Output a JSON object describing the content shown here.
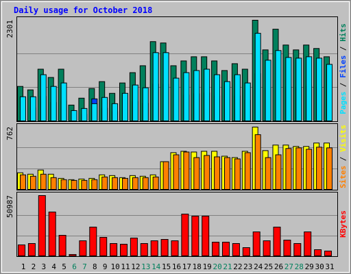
{
  "chart_data": [
    {
      "type": "bar",
      "title": "Daily usage for October 2018",
      "ylim": [
        0,
        2301
      ],
      "yticks": [
        2301
      ],
      "legend_separator": " / ",
      "series": [
        {
          "name": "Hits",
          "color": "#00805c",
          "values": [
            788,
            709,
            1182,
            993,
            1182,
            362,
            520,
            741,
            898,
            630,
            867,
            1103,
            1261,
            1812,
            1781,
            1261,
            1371,
            1466,
            1466,
            1371,
            1151,
            1308,
            1182,
            2301,
            1623,
            2096,
            1734,
            1623,
            1734,
            1655,
            1466
          ]
        },
        {
          "name": "Files",
          "color": "#0040ff",
          "values": [
            300,
            300,
            560,
            420,
            460,
            130,
            150,
            504,
            290,
            210,
            340,
            440,
            400,
            840,
            840,
            520,
            590,
            620,
            640,
            570,
            480,
            570,
            470,
            1080,
            750,
            870,
            780,
            770,
            790,
            770,
            700
          ]
        },
        {
          "name": "Pages",
          "color": "#00e0ff",
          "values": [
            552,
            552,
            1056,
            788,
            867,
            236,
            284,
            394,
            536,
            394,
            630,
            820,
            757,
            1560,
            1560,
            977,
            1103,
            1151,
            1182,
            1056,
            898,
            1056,
            867,
            2002,
            1387,
            1608,
            1450,
            1434,
            1466,
            1434,
            1292
          ]
        }
      ]
    },
    {
      "type": "bar",
      "ylim": [
        0,
        762
      ],
      "yticks": [
        762
      ],
      "legend_separator": " / ",
      "series": [
        {
          "name": "Visits",
          "color": "#ffff00",
          "values": [
            203,
            186,
            237,
            186,
            135,
            119,
            127,
            135,
            178,
            169,
            144,
            169,
            161,
            178,
            339,
            449,
            466,
            457,
            466,
            466,
            406,
            389,
            466,
            762,
            474,
            542,
            542,
            525,
            525,
            567,
            567
          ]
        },
        {
          "name": "Sites",
          "color": "#ff8000",
          "values": [
            178,
            161,
            186,
            144,
            119,
            110,
            110,
            119,
            152,
            144,
            135,
            144,
            144,
            152,
            339,
            423,
            457,
            389,
            415,
            398,
            389,
            373,
            449,
            669,
            389,
            423,
            500,
            508,
            491,
            516,
            508
          ]
        }
      ]
    },
    {
      "type": "bar",
      "ylim": [
        0,
        50987
      ],
      "yticks": [
        50987
      ],
      "series": [
        {
          "name": "KBytes",
          "color": "#ff0000",
          "values": [
            9270,
            10430,
            50987,
            37082,
            17382,
            1159,
            12747,
            24335,
            15644,
            10430,
            9850,
            15064,
            10430,
            12747,
            13906,
            12747,
            35343,
            33605,
            33605,
            11588,
            11588,
            10430,
            6953,
            20279,
            12747,
            24335,
            13326,
            10430,
            20279,
            5215,
            4056
          ]
        }
      ],
      "categories": [
        "1",
        "2",
        "3",
        "4",
        "5",
        "6",
        "7",
        "8",
        "9",
        "10",
        "11",
        "12",
        "13",
        "14",
        "15",
        "16",
        "17",
        "18",
        "19",
        "20",
        "21",
        "22",
        "23",
        "24",
        "25",
        "26",
        "27",
        "28",
        "29",
        "30",
        "31"
      ],
      "category_colors": [
        "#000000",
        "#000000",
        "#000000",
        "#000000",
        "#000000",
        "#00805c",
        "#00805c",
        "#000000",
        "#000000",
        "#000000",
        "#000000",
        "#000000",
        "#00805c",
        "#00805c",
        "#000000",
        "#000000",
        "#000000",
        "#000000",
        "#000000",
        "#00805c",
        "#00805c",
        "#000000",
        "#000000",
        "#000000",
        "#000000",
        "#000000",
        "#00805c",
        "#00805c",
        "#000000",
        "#000000",
        "#000000"
      ]
    }
  ]
}
